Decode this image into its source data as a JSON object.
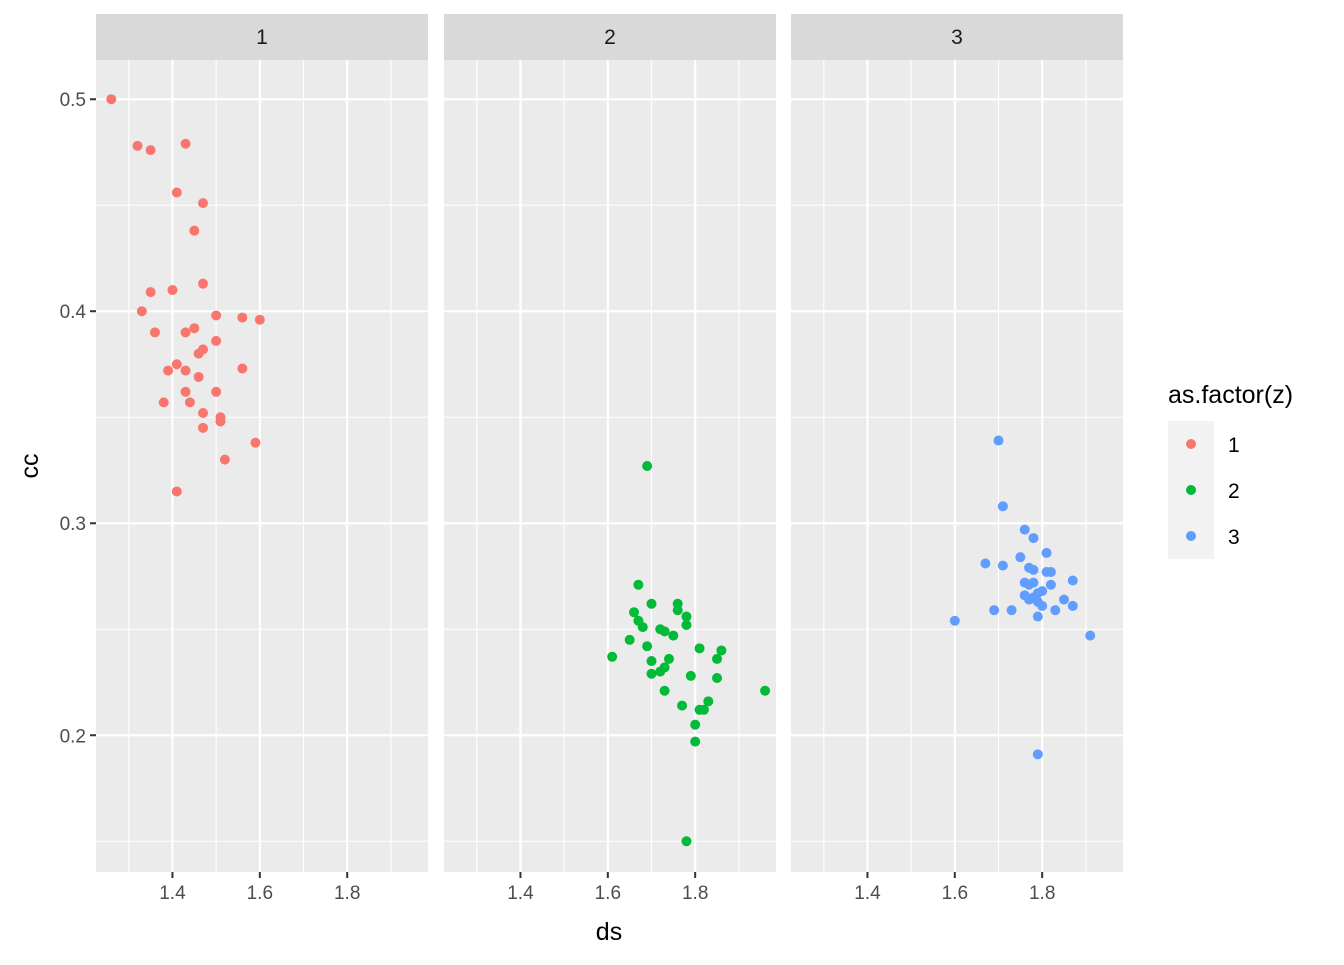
{
  "chart_data": {
    "type": "scatter",
    "facet_variable": "z",
    "x_label": "ds",
    "y_label": "cc",
    "xlim": [
      1.225,
      1.985
    ],
    "ylim": [
      0.1355,
      0.5185
    ],
    "x_ticks": [
      1.4,
      1.6,
      1.8
    ],
    "x_tick_labels": [
      "1.4",
      "1.6",
      "1.8"
    ],
    "y_ticks": [
      0.2,
      0.3,
      0.4,
      0.5
    ],
    "y_tick_labels": [
      "0.2",
      "0.3",
      "0.4",
      "0.5"
    ],
    "grid": true,
    "legend": {
      "title": "as.factor(z)",
      "placement": "right",
      "entries": [
        {
          "label": "1",
          "color": "#F8766D"
        },
        {
          "label": "2",
          "color": "#00BA38"
        },
        {
          "label": "3",
          "color": "#619CFF"
        }
      ]
    },
    "panels": [
      {
        "strip_label": "1",
        "series": "1",
        "color": "#F8766D",
        "points": [
          [
            1.26,
            0.5
          ],
          [
            1.32,
            0.478
          ],
          [
            1.35,
            0.476
          ],
          [
            1.43,
            0.479
          ],
          [
            1.41,
            0.456
          ],
          [
            1.47,
            0.451
          ],
          [
            1.45,
            0.438
          ],
          [
            1.47,
            0.413
          ],
          [
            1.35,
            0.409
          ],
          [
            1.4,
            0.41
          ],
          [
            1.33,
            0.4
          ],
          [
            1.36,
            0.39
          ],
          [
            1.43,
            0.39
          ],
          [
            1.45,
            0.392
          ],
          [
            1.5,
            0.398
          ],
          [
            1.56,
            0.397
          ],
          [
            1.6,
            0.396
          ],
          [
            1.5,
            0.386
          ],
          [
            1.47,
            0.382
          ],
          [
            1.46,
            0.38
          ],
          [
            1.41,
            0.375
          ],
          [
            1.39,
            0.372
          ],
          [
            1.43,
            0.372
          ],
          [
            1.46,
            0.369
          ],
          [
            1.56,
            0.373
          ],
          [
            1.43,
            0.362
          ],
          [
            1.5,
            0.362
          ],
          [
            1.38,
            0.357
          ],
          [
            1.44,
            0.357
          ],
          [
            1.47,
            0.352
          ],
          [
            1.51,
            0.35
          ],
          [
            1.51,
            0.348
          ],
          [
            1.47,
            0.345
          ],
          [
            1.59,
            0.338
          ],
          [
            1.52,
            0.33
          ],
          [
            1.41,
            0.315
          ]
        ]
      },
      {
        "strip_label": "2",
        "series": "2",
        "color": "#00BA38",
        "points": [
          [
            1.69,
            0.327
          ],
          [
            1.67,
            0.271
          ],
          [
            1.7,
            0.262
          ],
          [
            1.76,
            0.262
          ],
          [
            1.76,
            0.259
          ],
          [
            1.66,
            0.258
          ],
          [
            1.78,
            0.256
          ],
          [
            1.67,
            0.254
          ],
          [
            1.68,
            0.251
          ],
          [
            1.78,
            0.252
          ],
          [
            1.72,
            0.25
          ],
          [
            1.73,
            0.249
          ],
          [
            1.75,
            0.247
          ],
          [
            1.65,
            0.245
          ],
          [
            1.69,
            0.242
          ],
          [
            1.81,
            0.241
          ],
          [
            1.86,
            0.24
          ],
          [
            1.61,
            0.237
          ],
          [
            1.74,
            0.236
          ],
          [
            1.85,
            0.236
          ],
          [
            1.7,
            0.235
          ],
          [
            1.73,
            0.232
          ],
          [
            1.72,
            0.23
          ],
          [
            1.7,
            0.229
          ],
          [
            1.79,
            0.228
          ],
          [
            1.85,
            0.227
          ],
          [
            1.73,
            0.221
          ],
          [
            1.96,
            0.221
          ],
          [
            1.83,
            0.216
          ],
          [
            1.77,
            0.214
          ],
          [
            1.81,
            0.212
          ],
          [
            1.82,
            0.212
          ],
          [
            1.8,
            0.205
          ],
          [
            1.8,
            0.197
          ],
          [
            1.78,
            0.15
          ]
        ]
      },
      {
        "strip_label": "3",
        "series": "3",
        "color": "#619CFF",
        "points": [
          [
            1.7,
            0.339
          ],
          [
            1.71,
            0.308
          ],
          [
            1.76,
            0.297
          ],
          [
            1.78,
            0.293
          ],
          [
            1.81,
            0.286
          ],
          [
            1.75,
            0.284
          ],
          [
            1.67,
            0.281
          ],
          [
            1.71,
            0.28
          ],
          [
            1.77,
            0.279
          ],
          [
            1.78,
            0.278
          ],
          [
            1.81,
            0.277
          ],
          [
            1.82,
            0.277
          ],
          [
            1.76,
            0.272
          ],
          [
            1.78,
            0.272
          ],
          [
            1.77,
            0.271
          ],
          [
            1.82,
            0.271
          ],
          [
            1.87,
            0.273
          ],
          [
            1.8,
            0.268
          ],
          [
            1.79,
            0.267
          ],
          [
            1.76,
            0.266
          ],
          [
            1.78,
            0.265
          ],
          [
            1.77,
            0.264
          ],
          [
            1.79,
            0.263
          ],
          [
            1.85,
            0.264
          ],
          [
            1.8,
            0.261
          ],
          [
            1.87,
            0.261
          ],
          [
            1.69,
            0.259
          ],
          [
            1.73,
            0.259
          ],
          [
            1.83,
            0.259
          ],
          [
            1.79,
            0.256
          ],
          [
            1.6,
            0.254
          ],
          [
            1.91,
            0.247
          ],
          [
            1.79,
            0.191
          ]
        ]
      }
    ]
  }
}
